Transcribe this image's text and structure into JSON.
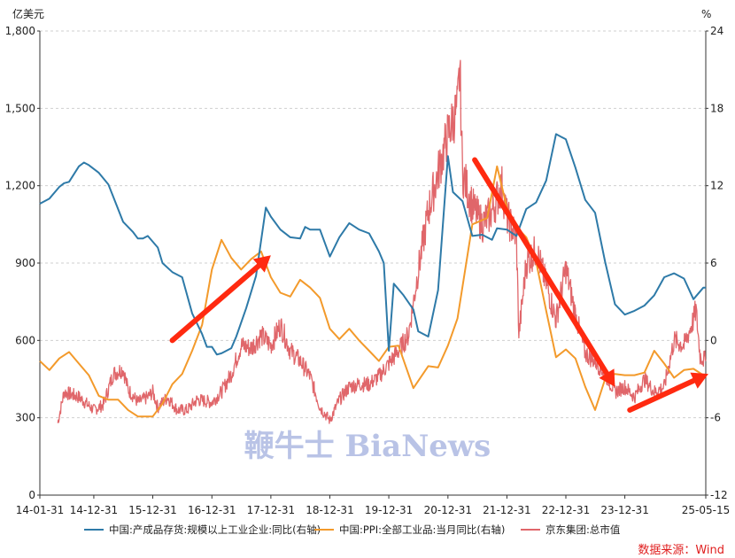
{
  "chart_data": {
    "type": "line",
    "left_axis_unit": "亿美元",
    "right_axis_unit": "%",
    "ylim_left": [
      0,
      1800
    ],
    "ylim_right": [
      -12,
      24
    ],
    "left_ticks": [
      "0",
      "300",
      "600",
      "900",
      "1,200",
      "1,500",
      "1,800"
    ],
    "right_ticks": [
      "-12",
      "-6",
      "0",
      "6",
      "12",
      "18",
      "24"
    ],
    "x_ticks": [
      "14-01-31",
      "14-12-31",
      "15-12-31",
      "16-12-31",
      "17-12-31",
      "18-12-31",
      "19-12-31",
      "20-12-31",
      "21-12-31",
      "22-12-31",
      "23-12-31",
      "25-05-15"
    ],
    "grid": "horizontal dashed",
    "legend_position": "bottom",
    "series": [
      {
        "name": "中国:产成品存货:规模以上工业企业:同比(右轴)",
        "axis": "right",
        "color": "#2e7aa8",
        "points": [
          [
            "2014-01-31",
            10.6
          ],
          [
            "2014-03-31",
            11.0
          ],
          [
            "2014-05-31",
            11.9
          ],
          [
            "2014-06-30",
            12.2
          ],
          [
            "2014-07-31",
            12.3
          ],
          [
            "2014-09-30",
            13.5
          ],
          [
            "2014-10-31",
            13.8
          ],
          [
            "2014-11-30",
            13.6
          ],
          [
            "2015-01-31",
            13.0
          ],
          [
            "2015-03-31",
            12.1
          ],
          [
            "2015-06-30",
            9.2
          ],
          [
            "2015-08-31",
            8.4
          ],
          [
            "2015-09-30",
            7.9
          ],
          [
            "2015-10-31",
            7.9
          ],
          [
            "2015-11-30",
            8.1
          ],
          [
            "2016-01-31",
            7.2
          ],
          [
            "2016-02-29",
            6.0
          ],
          [
            "2016-04-30",
            5.3
          ],
          [
            "2016-06-30",
            4.9
          ],
          [
            "2016-08-31",
            2.1
          ],
          [
            "2016-10-31",
            0.5
          ],
          [
            "2016-11-30",
            -0.5
          ],
          [
            "2016-12-31",
            -0.5
          ],
          [
            "2017-01-31",
            -1.1
          ],
          [
            "2017-02-28",
            -1.0
          ],
          [
            "2017-04-30",
            -0.6
          ],
          [
            "2017-05-31",
            0.3
          ],
          [
            "2017-07-31",
            2.5
          ],
          [
            "2017-09-30",
            5.0
          ],
          [
            "2017-11-30",
            10.3
          ],
          [
            "2017-12-31",
            9.6
          ],
          [
            "2018-02-28",
            8.6
          ],
          [
            "2018-04-30",
            8.0
          ],
          [
            "2018-06-30",
            7.9
          ],
          [
            "2018-07-31",
            8.8
          ],
          [
            "2018-08-31",
            8.6
          ],
          [
            "2018-10-31",
            8.6
          ],
          [
            "2018-12-31",
            6.5
          ],
          [
            "2019-02-28",
            8.0
          ],
          [
            "2019-04-30",
            9.1
          ],
          [
            "2019-06-30",
            8.6
          ],
          [
            "2019-08-31",
            8.3
          ],
          [
            "2019-10-31",
            6.9
          ],
          [
            "2019-11-30",
            6.0
          ],
          [
            "2019-12-31",
            -0.8
          ],
          [
            "2020-01-31",
            4.4
          ],
          [
            "2020-03-31",
            3.5
          ],
          [
            "2020-05-31",
            2.4
          ],
          [
            "2020-06-30",
            0.7
          ],
          [
            "2020-08-31",
            0.3
          ],
          [
            "2020-10-31",
            3.9
          ],
          [
            "2020-12-31",
            14.3
          ],
          [
            "2021-01-31",
            11.5
          ],
          [
            "2021-03-31",
            10.8
          ],
          [
            "2021-05-31",
            8.1
          ],
          [
            "2021-07-31",
            8.2
          ],
          [
            "2021-09-30",
            7.8
          ],
          [
            "2021-10-31",
            8.7
          ],
          [
            "2021-12-31",
            8.6
          ],
          [
            "2022-02-28",
            8.1
          ],
          [
            "2022-04-30",
            10.2
          ],
          [
            "2022-06-30",
            10.7
          ],
          [
            "2022-08-31",
            12.4
          ],
          [
            "2022-10-31",
            16.0
          ],
          [
            "2022-12-31",
            15.6
          ],
          [
            "2023-02-28",
            13.4
          ],
          [
            "2023-04-30",
            10.9
          ],
          [
            "2023-06-30",
            9.9
          ],
          [
            "2023-08-31",
            6.1
          ],
          [
            "2023-10-31",
            2.8
          ],
          [
            "2023-12-31",
            2.0
          ],
          [
            "2024-02-29",
            2.3
          ],
          [
            "2024-04-30",
            2.7
          ],
          [
            "2024-06-30",
            3.5
          ],
          [
            "2024-08-31",
            4.9
          ],
          [
            "2024-10-31",
            5.2
          ],
          [
            "2024-12-31",
            4.8
          ],
          [
            "2025-02-28",
            3.2
          ],
          [
            "2025-04-30",
            4.1
          ],
          [
            "2025-05-15",
            4.1
          ]
        ]
      },
      {
        "name": "中国:PPI:全部工业品:当月同比(右轴)",
        "axis": "right",
        "color": "#f39a2b",
        "points": [
          [
            "2014-01-31",
            -1.6
          ],
          [
            "2014-03-31",
            -2.3
          ],
          [
            "2014-05-31",
            -1.4
          ],
          [
            "2014-07-31",
            -0.9
          ],
          [
            "2014-09-30",
            -1.8
          ],
          [
            "2014-11-30",
            -2.7
          ],
          [
            "2015-01-31",
            -4.3
          ],
          [
            "2015-03-31",
            -4.6
          ],
          [
            "2015-05-31",
            -4.6
          ],
          [
            "2015-07-31",
            -5.4
          ],
          [
            "2015-09-30",
            -5.9
          ],
          [
            "2015-12-31",
            -5.9
          ],
          [
            "2016-02-29",
            -4.9
          ],
          [
            "2016-04-30",
            -3.4
          ],
          [
            "2016-06-30",
            -2.6
          ],
          [
            "2016-08-31",
            -0.8
          ],
          [
            "2016-10-31",
            1.2
          ],
          [
            "2016-12-31",
            5.5
          ],
          [
            "2017-02-28",
            7.8
          ],
          [
            "2017-04-30",
            6.4
          ],
          [
            "2017-06-30",
            5.5
          ],
          [
            "2017-08-31",
            6.3
          ],
          [
            "2017-10-31",
            6.9
          ],
          [
            "2017-12-31",
            4.9
          ],
          [
            "2018-02-28",
            3.7
          ],
          [
            "2018-04-30",
            3.4
          ],
          [
            "2018-06-30",
            4.7
          ],
          [
            "2018-08-31",
            4.1
          ],
          [
            "2018-10-31",
            3.3
          ],
          [
            "2018-12-31",
            0.9
          ],
          [
            "2019-02-28",
            0.1
          ],
          [
            "2019-04-30",
            0.9
          ],
          [
            "2019-06-30",
            0.0
          ],
          [
            "2019-08-31",
            -0.8
          ],
          [
            "2019-10-31",
            -1.6
          ],
          [
            "2019-12-31",
            -0.5
          ],
          [
            "2020-02-29",
            -0.4
          ],
          [
            "2020-05-31",
            -3.7
          ],
          [
            "2020-08-31",
            -2.0
          ],
          [
            "2020-10-31",
            -2.1
          ],
          [
            "2020-12-31",
            -0.4
          ],
          [
            "2021-02-28",
            1.7
          ],
          [
            "2021-05-31",
            9.0
          ],
          [
            "2021-08-31",
            9.5
          ],
          [
            "2021-10-31",
            13.5
          ],
          [
            "2021-12-31",
            10.3
          ],
          [
            "2022-02-28",
            8.8
          ],
          [
            "2022-04-30",
            8.0
          ],
          [
            "2022-06-30",
            6.1
          ],
          [
            "2022-08-31",
            2.3
          ],
          [
            "2022-10-31",
            -1.3
          ],
          [
            "2022-12-31",
            -0.7
          ],
          [
            "2023-02-28",
            -1.4
          ],
          [
            "2023-04-30",
            -3.6
          ],
          [
            "2023-06-30",
            -5.4
          ],
          [
            "2023-08-31",
            -3.0
          ],
          [
            "2023-10-31",
            -2.6
          ],
          [
            "2023-12-31",
            -2.7
          ],
          [
            "2024-02-29",
            -2.7
          ],
          [
            "2024-04-30",
            -2.5
          ],
          [
            "2024-06-30",
            -0.8
          ],
          [
            "2024-08-31",
            -1.8
          ],
          [
            "2024-10-31",
            -2.9
          ],
          [
            "2024-12-31",
            -2.3
          ],
          [
            "2025-02-28",
            -2.2
          ],
          [
            "2025-04-30",
            -2.7
          ],
          [
            "2025-05-15",
            -2.7
          ]
        ]
      },
      {
        "name": "京东集团:总市值",
        "axis": "left",
        "color": "#e0666a",
        "points": [
          [
            "2014-05-22",
            280
          ],
          [
            "2014-06-30",
            400
          ],
          [
            "2014-09-30",
            380
          ],
          [
            "2014-12-31",
            330
          ],
          [
            "2015-02-28",
            350
          ],
          [
            "2015-04-30",
            470
          ],
          [
            "2015-06-30",
            490
          ],
          [
            "2015-07-31",
            410
          ],
          [
            "2015-09-30",
            360
          ],
          [
            "2015-11-30",
            380
          ],
          [
            "2015-12-31",
            400
          ],
          [
            "2016-01-31",
            340
          ],
          [
            "2016-03-31",
            380
          ],
          [
            "2016-05-31",
            330
          ],
          [
            "2016-07-31",
            330
          ],
          [
            "2016-09-30",
            370
          ],
          [
            "2016-12-31",
            360
          ],
          [
            "2017-02-28",
            400
          ],
          [
            "2017-04-30",
            470
          ],
          [
            "2017-06-30",
            580
          ],
          [
            "2017-08-31",
            570
          ],
          [
            "2017-10-31",
            620
          ],
          [
            "2017-12-31",
            580
          ],
          [
            "2018-02-28",
            660
          ],
          [
            "2018-04-30",
            560
          ],
          [
            "2018-06-30",
            520
          ],
          [
            "2018-08-31",
            460
          ],
          [
            "2018-10-31",
            340
          ],
          [
            "2018-12-31",
            290
          ],
          [
            "2019-02-28",
            370
          ],
          [
            "2019-04-30",
            420
          ],
          [
            "2019-06-30",
            430
          ],
          [
            "2019-08-31",
            430
          ],
          [
            "2019-10-31",
            460
          ],
          [
            "2019-12-31",
            510
          ],
          [
            "2020-02-29",
            560
          ],
          [
            "2020-04-30",
            620
          ],
          [
            "2020-06-30",
            870
          ],
          [
            "2020-08-31",
            1100
          ],
          [
            "2020-10-31",
            1250
          ],
          [
            "2020-12-31",
            1400
          ],
          [
            "2021-02-28",
            1500
          ],
          [
            "2021-03-15",
            1660
          ],
          [
            "2021-03-31",
            1250
          ],
          [
            "2021-05-31",
            1120
          ],
          [
            "2021-07-31",
            1050
          ],
          [
            "2021-09-30",
            1100
          ],
          [
            "2021-11-30",
            1200
          ],
          [
            "2021-12-31",
            1080
          ],
          [
            "2022-02-28",
            1000
          ],
          [
            "2022-03-15",
            620
          ],
          [
            "2022-04-30",
            900
          ],
          [
            "2022-06-30",
            950
          ],
          [
            "2022-08-31",
            820
          ],
          [
            "2022-10-31",
            680
          ],
          [
            "2022-12-31",
            880
          ],
          [
            "2023-02-28",
            700
          ],
          [
            "2023-04-30",
            550
          ],
          [
            "2023-06-30",
            520
          ],
          [
            "2023-08-31",
            470
          ],
          [
            "2023-10-31",
            400
          ],
          [
            "2023-12-31",
            420
          ],
          [
            "2024-02-29",
            380
          ],
          [
            "2024-04-30",
            450
          ],
          [
            "2024-06-30",
            400
          ],
          [
            "2024-08-31",
            420
          ],
          [
            "2024-10-31",
            600
          ],
          [
            "2024-12-31",
            580
          ],
          [
            "2025-02-28",
            680
          ],
          [
            "2025-03-15",
            720
          ],
          [
            "2025-04-10",
            540
          ],
          [
            "2025-05-15",
            520
          ]
        ]
      }
    ],
    "annotation_arrows": [
      {
        "from": [
          "2016-04-30",
          600
        ],
        "to": [
          "2017-12-31",
          930
        ],
        "axis": "left",
        "color": "#ff2a10"
      },
      {
        "from": [
          "2021-06-15",
          1300
        ],
        "to": [
          "2023-10-31",
          420
        ],
        "axis": "left",
        "color": "#ff2a10"
      },
      {
        "from": [
          "2024-01-31",
          330
        ],
        "to": [
          "2025-05-31",
          470
        ],
        "axis": "left",
        "color": "#ff2a10"
      }
    ]
  },
  "watermark": "鞭牛士 BiaNews",
  "source_note": "数据来源：Wind"
}
